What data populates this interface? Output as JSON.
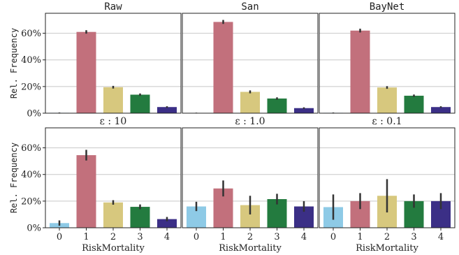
{
  "chart_data": [
    {
      "type": "bar",
      "title": "Raw",
      "categories": [
        "0",
        "1",
        "2",
        "3",
        "4"
      ],
      "values": [
        0.3,
        61.0,
        19.5,
        13.9,
        4.6
      ],
      "error": [
        0.2,
        1.3,
        1.0,
        0.9,
        0.6
      ],
      "ylabel": "Rel. Frequency",
      "xlabel": "",
      "ylim": [
        0,
        75
      ],
      "yticks": [
        "0%",
        "20%",
        "40%",
        "60%"
      ],
      "grid": true
    },
    {
      "type": "bar",
      "title": "San",
      "categories": [
        "0",
        "1",
        "2",
        "3",
        "4"
      ],
      "values": [
        0.2,
        68.5,
        16.0,
        11.0,
        3.8
      ],
      "error": [
        0.2,
        1.5,
        1.1,
        0.9,
        0.6
      ],
      "ylabel": "",
      "xlabel": "",
      "ylim": [
        0,
        75
      ],
      "yticks": [
        "0%",
        "20%",
        "40%",
        "60%"
      ],
      "grid": true
    },
    {
      "type": "bar",
      "title": "BayNet",
      "categories": [
        "0",
        "1",
        "2",
        "3",
        "4"
      ],
      "values": [
        0.3,
        62.0,
        19.3,
        13.1,
        4.6
      ],
      "error": [
        0.2,
        1.4,
        1.0,
        0.9,
        0.6
      ],
      "ylabel": "",
      "xlabel": "",
      "ylim": [
        0,
        75
      ],
      "yticks": [
        "0%",
        "20%",
        "40%",
        "60%"
      ],
      "grid": true
    },
    {
      "type": "bar",
      "title": "ε : 10",
      "categories": [
        "0",
        "1",
        "2",
        "3",
        "4"
      ],
      "values": [
        3.5,
        54.5,
        19.0,
        15.7,
        6.5
      ],
      "error": [
        2.0,
        4.0,
        1.7,
        1.8,
        1.6
      ],
      "ylabel": "Rel. Frequency",
      "xlabel": "RiskMortality",
      "ylim": [
        0,
        75
      ],
      "yticks": [
        "0%",
        "20%",
        "40%",
        "60%"
      ],
      "grid": true
    },
    {
      "type": "bar",
      "title": "ε : 1.0",
      "categories": [
        "0",
        "1",
        "2",
        "3",
        "4"
      ],
      "values": [
        16.0,
        29.5,
        17.0,
        21.5,
        16.0
      ],
      "error": [
        3.5,
        6.0,
        7.0,
        4.0,
        4.0
      ],
      "ylabel": "",
      "xlabel": "RiskMortality",
      "ylim": [
        0,
        75
      ],
      "yticks": [
        "0%",
        "20%",
        "40%",
        "60%"
      ],
      "grid": true
    },
    {
      "type": "bar",
      "title": "ε : 0.1",
      "categories": [
        "0",
        "1",
        "2",
        "3",
        "4"
      ],
      "values": [
        15.5,
        20.0,
        24.0,
        20.0,
        20.0
      ],
      "error": [
        9.5,
        6.0,
        12.5,
        5.0,
        6.0
      ],
      "ylabel": "",
      "xlabel": "RiskMortality",
      "ylim": [
        0,
        75
      ],
      "yticks": [
        "0%",
        "20%",
        "40%",
        "60%"
      ],
      "grid": true
    }
  ],
  "colors": [
    "#8ecae6",
    "#c2707c",
    "#d7c87e",
    "#237b3f",
    "#3b2f86"
  ],
  "errorbar_color": "#333333"
}
